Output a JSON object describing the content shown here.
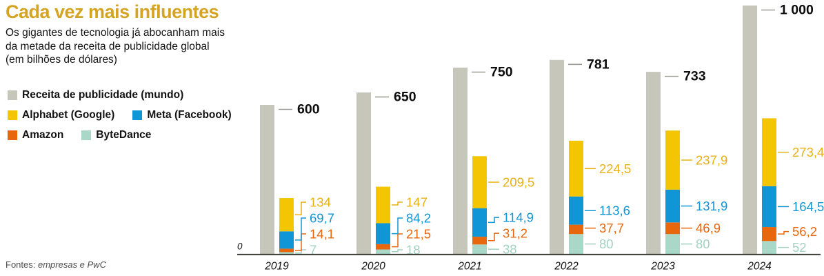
{
  "header": {
    "title": "Cada vez mais influentes",
    "subtitle_lines": [
      "Os gigantes de tecnologia já abocanham mais",
      "da metade da receita de publicidade global",
      "(em bilhões de dólares)"
    ]
  },
  "legend": {
    "items": [
      {
        "id": "world",
        "label": "Receita de publicidade (mundo)",
        "color": "#C6C7BA"
      },
      {
        "id": "alphabet",
        "label": "Alphabet (Google)",
        "color": "#F4C503"
      },
      {
        "id": "meta",
        "label": "Meta (Facebook)",
        "color": "#1096D6"
      },
      {
        "id": "amazon",
        "label": "Amazon",
        "color": "#E8670D"
      },
      {
        "id": "bytedance",
        "label": "ByteDance",
        "color": "#A9D8C9"
      }
    ]
  },
  "source": {
    "prefix": "Fontes:",
    "text": "empresas e PwC"
  },
  "chart_data": {
    "type": "bar",
    "title": "Cada vez mais influentes",
    "subtitle": "Os gigantes de tecnologia já abocanham mais da metade da receita de publicidade global",
    "unit": "em bilhões de dólares",
    "categories": [
      "2019",
      "2020",
      "2021",
      "2022",
      "2023",
      "2024"
    ],
    "series": [
      {
        "name": "Receita de publicidade (mundo)",
        "role": "world",
        "color": "#C6C7BA",
        "values": [
          600,
          650,
          750,
          781,
          733,
          1000
        ],
        "labels": [
          "600",
          "650",
          "750",
          "781",
          "733",
          "1 000"
        ]
      },
      {
        "name": "Alphabet (Google)",
        "role": "stack",
        "color": "#F4C503",
        "label_color": "#E9B112",
        "values": [
          134,
          147,
          209.5,
          224.5,
          237.9,
          273.4
        ],
        "labels": [
          "134",
          "147",
          "209,5",
          "224,5",
          "237,9",
          "273,4"
        ]
      },
      {
        "name": "Meta (Facebook)",
        "role": "stack",
        "color": "#1096D6",
        "label_color": "#1096D6",
        "values": [
          69.7,
          84.2,
          114.9,
          113.6,
          131.9,
          164.5
        ],
        "labels": [
          "69,7",
          "84,2",
          "114,9",
          "113,6",
          "131,9",
          "164,5"
        ]
      },
      {
        "name": "Amazon",
        "role": "stack",
        "color": "#E8670D",
        "label_color": "#E8670D",
        "values": [
          14.1,
          21.5,
          31.2,
          37.7,
          46.9,
          56.2
        ],
        "labels": [
          "14,1",
          "21,5",
          "31,2",
          "37,7",
          "46,9",
          "56,2"
        ]
      },
      {
        "name": "ByteDance",
        "role": "stack",
        "color": "#A9D8C9",
        "label_color": "#A3D2C3",
        "values": [
          7,
          18,
          38,
          80,
          80,
          52
        ],
        "labels": [
          "7",
          "18",
          "38",
          "80",
          "80",
          "52"
        ]
      }
    ],
    "axis": {
      "zero_label": "0",
      "ylim": [
        0,
        1000
      ],
      "grid": false
    },
    "legend_position": "top-left"
  }
}
